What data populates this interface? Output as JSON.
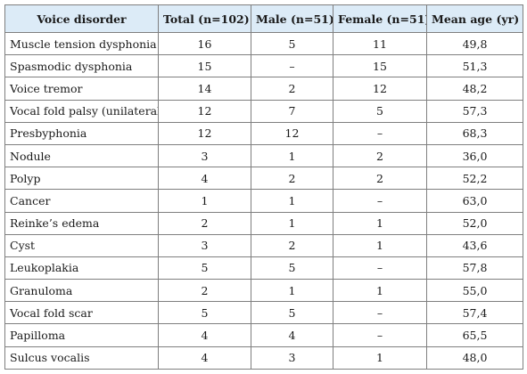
{
  "table": {
    "headers": [
      "Voice disorder",
      "Total (n=102)",
      "Male (n=51)",
      "Female (n=51)",
      "Mean age (yr)"
    ],
    "rows": [
      [
        "Muscle tension dysphonia",
        "16",
        "5",
        "11",
        "49,8"
      ],
      [
        "Spasmodic dysphonia",
        "15",
        "–",
        "15",
        "51,3"
      ],
      [
        "Voice tremor",
        "14",
        "2",
        "12",
        "48,2"
      ],
      [
        "Vocal fold palsy (unilateral)",
        "12",
        "7",
        "5",
        "57,3"
      ],
      [
        "Presbyphonia",
        "12",
        "12",
        "–",
        "68,3"
      ],
      [
        "Nodule",
        "3",
        "1",
        "2",
        "36,0"
      ],
      [
        "Polyp",
        "4",
        "2",
        "2",
        "52,2"
      ],
      [
        "Cancer",
        "1",
        "1",
        "–",
        "63,0"
      ],
      [
        "Reinke’s edema",
        "2",
        "1",
        "1",
        "52,0"
      ],
      [
        "Cyst",
        "3",
        "2",
        "1",
        "43,6"
      ],
      [
        "Leukoplakia",
        "5",
        "5",
        "–",
        "57,8"
      ],
      [
        "Granuloma",
        "2",
        "1",
        "1",
        "55,0"
      ],
      [
        "Vocal fold scar",
        "5",
        "5",
        "–",
        "57,4"
      ],
      [
        "Papilloma",
        "4",
        "4",
        "–",
        "65,5"
      ],
      [
        "Sulcus vocalis",
        "4",
        "3",
        "1",
        "48,0"
      ]
    ]
  },
  "colors": {
    "header_background": "#dcebf7",
    "border": "#7f7f7f",
    "text": "#1a1a1a"
  }
}
